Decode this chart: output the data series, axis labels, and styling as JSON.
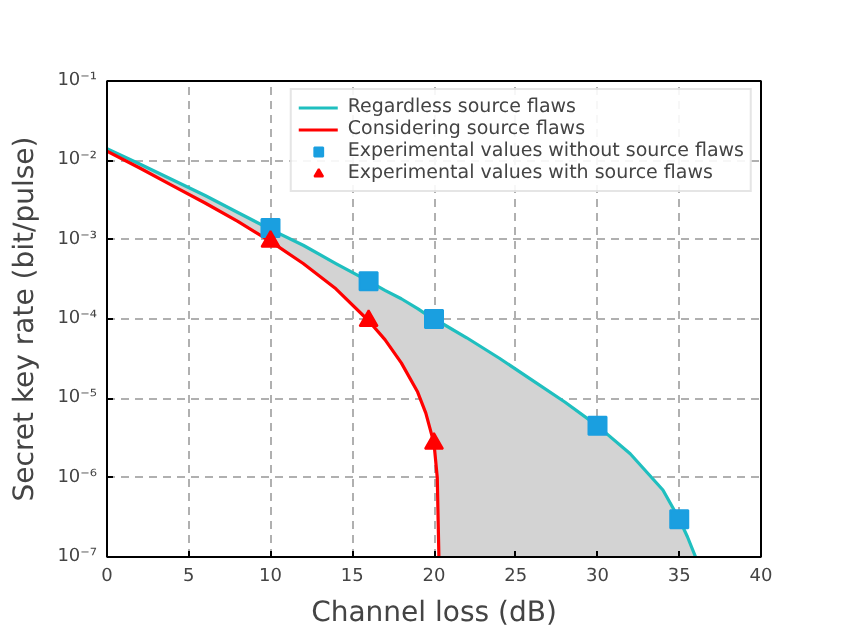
{
  "chart_data": {
    "type": "line",
    "xlabel": "Channel loss (dB)",
    "ylabel": "Secret key rate (bit/pulse)",
    "x": [
      0,
      2,
      4,
      6,
      8,
      10,
      12,
      14,
      16,
      17,
      18,
      19,
      19.5,
      20,
      20.2,
      20.3,
      22,
      24,
      26,
      28,
      30,
      32,
      34,
      35,
      35.5,
      36
    ],
    "series": [
      {
        "name": "Regardless source flaws",
        "color": "#1fbfbf",
        "values": [
          0.014,
          0.009,
          0.0057,
          0.0036,
          0.0022,
          0.00135,
          0.00085,
          0.0005,
          0.0003,
          0.00023,
          0.00018,
          0.000135,
          0.000115,
          0.0001,
          9.5e-05,
          9.3e-05,
          5.8e-05,
          3.2e-05,
          1.7e-05,
          9e-06,
          4.5e-06,
          2e-06,
          7e-07,
          3e-07,
          1.8e-07,
          1e-07
        ],
        "lower": [
          0.013,
          0.008,
          0.0048,
          0.0029,
          0.0017,
          0.00095,
          0.0005,
          0.00024,
          9.5e-05,
          5.5e-05,
          2.8e-05,
          1.2e-05,
          6.5e-06,
          2.7e-06,
          1e-06,
          1e-07,
          1e-07,
          1e-07,
          1e-07,
          1e-07,
          1e-07,
          1e-07,
          1e-07,
          1e-07,
          1e-07,
          1e-07
        ],
        "upper": [
          0.014,
          0.009,
          0.0057,
          0.0036,
          0.0022,
          0.00135,
          0.00085,
          0.0005,
          0.0003,
          0.00023,
          0.00018,
          0.000135,
          0.000115,
          0.0001,
          9.5e-05,
          9.3e-05,
          5.8e-05,
          3.2e-05,
          1.7e-05,
          9e-06,
          4.5e-06,
          2e-06,
          7e-07,
          3e-07,
          1.8e-07,
          1e-07
        ]
      },
      {
        "name": "Considering source flaws",
        "color": "#ff0000",
        "values": [
          0.013,
          0.008,
          0.0048,
          0.0029,
          0.0017,
          0.00095,
          0.0005,
          0.00024,
          9.5e-05,
          5.5e-05,
          2.8e-05,
          1.2e-05,
          6.5e-06,
          2.7e-06,
          1e-06,
          1e-07,
          null,
          null,
          null,
          null,
          null,
          null,
          null,
          null,
          null,
          null
        ]
      },
      {
        "name": "Experimental values without source flaws",
        "type": "scatter",
        "marker": "square",
        "color": "#1a9fe0",
        "x": [
          10,
          16,
          20,
          30,
          35
        ],
        "values": [
          0.0014,
          0.0003,
          0.0001,
          4.5e-06,
          3e-07
        ]
      },
      {
        "name": "Experimental values with source flaws",
        "type": "scatter",
        "marker": "triangle",
        "color": "#ff0000",
        "x": [
          10,
          16,
          20
        ],
        "values": [
          0.00095,
          9.5e-05,
          2.7e-06
        ]
      }
    ],
    "log": "y",
    "xlim": [
      0,
      40
    ],
    "ylim": [
      1e-07,
      0.1
    ],
    "xticks": [
      0,
      5,
      10,
      15,
      20,
      25,
      30,
      35,
      40
    ],
    "yticks": [
      {
        "value": 1e-07,
        "label": "10⁻⁷"
      },
      {
        "value": 1e-06,
        "label": "10⁻⁶"
      },
      {
        "value": 1e-05,
        "label": "10⁻⁵"
      },
      {
        "value": 0.0001,
        "label": "10⁻⁴"
      },
      {
        "value": 0.001,
        "label": "10⁻³"
      },
      {
        "value": 0.01,
        "label": "10⁻²"
      },
      {
        "value": 0.1,
        "label": "10⁻¹"
      }
    ],
    "grid": true,
    "legend": "top right",
    "line_style": "solid"
  }
}
